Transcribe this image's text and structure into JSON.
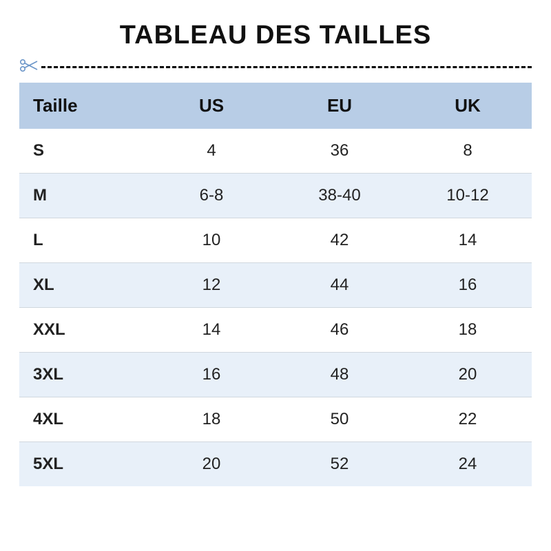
{
  "title": "TABLEAU DES TAILLES",
  "title_fontsize": 38,
  "title_color": "#111111",
  "scissor": {
    "icon_color": "#6a95c8",
    "dash_color": "#6a95c8",
    "dash_width": 2,
    "dash_pattern": "8,8"
  },
  "table": {
    "type": "table",
    "header_bg": "#b8cde6",
    "row_even_bg": "#ffffff",
    "row_odd_bg": "#e8f0f9",
    "row_border_color": "#d0d7de",
    "header_fontsize": 26,
    "header_fontweight": 700,
    "cell_fontsize": 24,
    "size_col_fontweight": 700,
    "columns": [
      {
        "key": "size",
        "label": "Taille",
        "width": "25%",
        "align": "left"
      },
      {
        "key": "us",
        "label": "US",
        "width": "25%",
        "align": "center"
      },
      {
        "key": "eu",
        "label": "EU",
        "width": "25%",
        "align": "center"
      },
      {
        "key": "uk",
        "label": "UK",
        "width": "25%",
        "align": "center"
      }
    ],
    "rows": [
      {
        "size": "S",
        "us": "4",
        "eu": "36",
        "uk": "8"
      },
      {
        "size": "M",
        "us": "6-8",
        "eu": "38-40",
        "uk": "10-12"
      },
      {
        "size": "L",
        "us": "10",
        "eu": "42",
        "uk": "14"
      },
      {
        "size": "XL",
        "us": "12",
        "eu": "44",
        "uk": "16"
      },
      {
        "size": "XXL",
        "us": "14",
        "eu": "46",
        "uk": "18"
      },
      {
        "size": "3XL",
        "us": "16",
        "eu": "48",
        "uk": "20"
      },
      {
        "size": "4XL",
        "us": "18",
        "eu": "50",
        "uk": "22"
      },
      {
        "size": "5XL",
        "us": "20",
        "eu": "52",
        "uk": "24"
      }
    ]
  }
}
